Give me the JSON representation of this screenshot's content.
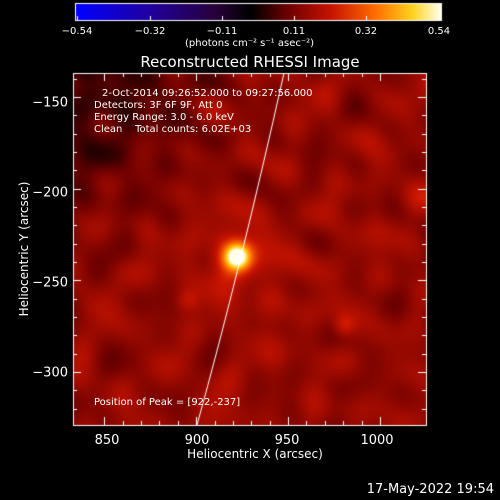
{
  "colorbar": {
    "ticks": [
      "−0.54",
      "−0.32",
      "−0.11",
      "0.11",
      "0.32",
      "0.54"
    ],
    "units": "(photons cm⁻² s⁻¹ asec⁻²)"
  },
  "title": "Reconstructed RHESSI Image",
  "info": {
    "line1": "2-Oct-2014 09:26:52.000 to 09:27:56.000",
    "line2": "Detectors: 3F 6F 9F, Att 0",
    "line3": "Energy Range: 3.0 - 6.0 keV",
    "line4": "Clean    Total counts: 6.02E+03"
  },
  "peak_text": "Position of Peak = [922,-237]",
  "axes": {
    "xlabel": "Heliocentric X (arcsec)",
    "ylabel": "Heliocentric Y (arcsec)",
    "xticks": [
      "850",
      "900",
      "950",
      "1000"
    ],
    "yticks": [
      "−150",
      "−200",
      "−250",
      "−300"
    ],
    "xlim": [
      833,
      1025
    ],
    "ylim": [
      -329,
      -137
    ]
  },
  "source": {
    "x": 922,
    "y": -237
  },
  "timestamp": "17-May-2022 19:54",
  "colors": {
    "background": "#000000",
    "foreground": "#ffffff"
  }
}
